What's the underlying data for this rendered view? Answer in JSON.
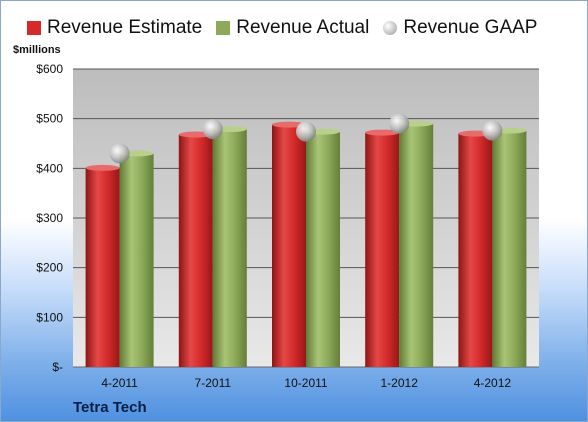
{
  "legend": {
    "estimate": "Revenue Estimate",
    "actual": "Revenue Actual",
    "gaap": "Revenue GAAP"
  },
  "unit_label": "$millions",
  "company": "Tetra Tech",
  "colors": {
    "estimate": "#d42a2a",
    "actual": "#8daa5a",
    "gaap": "#b8b8b8",
    "plot_bg": "#c8c8c8"
  },
  "chart_data": {
    "type": "bar",
    "categories": [
      "4-2011",
      "7-2011",
      "10-2011",
      "1-2012",
      "4-2012"
    ],
    "series": [
      {
        "name": "Revenue Estimate",
        "type": "bar",
        "values": [
          401,
          468,
          488,
          472,
          470
        ]
      },
      {
        "name": "Revenue Actual",
        "type": "bar",
        "values": [
          430,
          479,
          474,
          490,
          476
        ]
      },
      {
        "name": "Revenue GAAP",
        "type": "scatter",
        "values": [
          430,
          479,
          474,
          490,
          476
        ]
      }
    ],
    "ylabel": "$millions",
    "ylim": [
      0,
      600
    ],
    "yticks": [
      0,
      100,
      200,
      300,
      400,
      500,
      600
    ],
    "ytick_labels": [
      "$-",
      "$100",
      "$200",
      "$300",
      "$400",
      "$500",
      "$600"
    ],
    "grid": true,
    "legend_position": "top"
  }
}
